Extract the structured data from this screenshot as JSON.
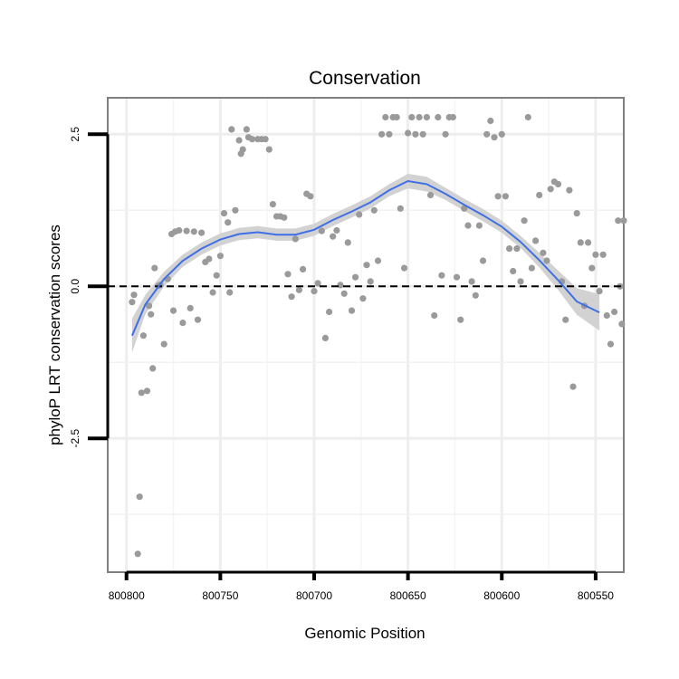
{
  "chart_data": {
    "type": "scatter",
    "title": "Conservation",
    "xlabel": "Genomic Position",
    "ylabel": "phyloP LRT conservation scores",
    "x_reversed": true,
    "xlim": [
      800810,
      800535
    ],
    "ylim": [
      -4.7,
      3.1
    ],
    "x_ticks": [
      800800,
      800750,
      800700,
      800650,
      800600,
      800550
    ],
    "x_tick_labels": [
      "800800",
      "800750",
      "800700",
      "800650",
      "800600",
      "800550"
    ],
    "y_ticks": [
      2.5,
      0.0,
      -2.5
    ],
    "y_tick_labels": [
      "2.5",
      "0.0",
      "-2.5"
    ],
    "reference_line": {
      "y": 0,
      "style": "dashed"
    },
    "grid": true,
    "colors": {
      "points": "#9a9a9a",
      "smooth": "#3f6fe6",
      "band": "#d2d2d2",
      "border": "#7f7f7f",
      "ref_line": "#000000"
    },
    "smooth": {
      "x": [
        800797,
        800790,
        800780,
        800770,
        800760,
        800750,
        800740,
        800730,
        800720,
        800710,
        800700,
        800690,
        800680,
        800670,
        800660,
        800650,
        800640,
        800630,
        800620,
        800610,
        800600,
        800590,
        800580,
        800570,
        800560,
        800548
      ],
      "y": [
        -0.81,
        -0.3,
        0.12,
        0.42,
        0.62,
        0.77,
        0.86,
        0.89,
        0.85,
        0.85,
        0.93,
        1.09,
        1.23,
        1.38,
        1.58,
        1.73,
        1.68,
        1.52,
        1.34,
        1.17,
        0.98,
        0.73,
        0.43,
        0.1,
        -0.25,
        -0.43
      ],
      "band_halfwidth": [
        0.28,
        0.16,
        0.12,
        0.1,
        0.1,
        0.1,
        0.1,
        0.1,
        0.1,
        0.1,
        0.1,
        0.1,
        0.1,
        0.1,
        0.1,
        0.12,
        0.12,
        0.1,
        0.1,
        0.1,
        0.1,
        0.1,
        0.12,
        0.16,
        0.22,
        0.3
      ]
    },
    "points": [
      [
        800797,
        -0.26
      ],
      [
        800796,
        -0.14
      ],
      [
        800794,
        -4.4
      ],
      [
        800793,
        -3.46
      ],
      [
        800792,
        -1.75
      ],
      [
        800791,
        -0.81
      ],
      [
        800789,
        -1.72
      ],
      [
        800788,
        -0.32
      ],
      [
        800787,
        -0.46
      ],
      [
        800786,
        -1.35
      ],
      [
        800785,
        0.3
      ],
      [
        800783,
        0.01
      ],
      [
        800782,
        0.02
      ],
      [
        800780,
        -0.95
      ],
      [
        800778,
        0.12
      ],
      [
        800776,
        0.86
      ],
      [
        800775,
        -0.4
      ],
      [
        800774,
        0.9
      ],
      [
        800772,
        0.92
      ],
      [
        800770,
        -0.6
      ],
      [
        800768,
        0.91
      ],
      [
        800766,
        -0.36
      ],
      [
        800764,
        0.9
      ],
      [
        800762,
        -0.55
      ],
      [
        800760,
        0.88
      ],
      [
        800758,
        0.4
      ],
      [
        800756,
        0.45
      ],
      [
        800754,
        -0.1
      ],
      [
        800752,
        0.18
      ],
      [
        800750,
        0.5
      ],
      [
        800748,
        1.2
      ],
      [
        800746,
        1.05
      ],
      [
        800745,
        -0.1
      ],
      [
        800744,
        2.58
      ],
      [
        800742,
        1.25
      ],
      [
        800740,
        2.4
      ],
      [
        800739,
        2.18
      ],
      [
        800738,
        2.25
      ],
      [
        800736,
        2.58
      ],
      [
        800735,
        2.45
      ],
      [
        800733,
        2.42
      ],
      [
        800730,
        2.42
      ],
      [
        800728,
        2.42
      ],
      [
        800726,
        2.42
      ],
      [
        800724,
        2.25
      ],
      [
        800722,
        1.35
      ],
      [
        800720,
        1.15
      ],
      [
        800718,
        1.15
      ],
      [
        800716,
        1.13
      ],
      [
        800714,
        0.2
      ],
      [
        800712,
        -0.17
      ],
      [
        800710,
        0.78
      ],
      [
        800708,
        -0.06
      ],
      [
        800706,
        0.28
      ],
      [
        800704,
        1.52
      ],
      [
        800702,
        1.48
      ],
      [
        800700,
        -0.08
      ],
      [
        800698,
        0.05
      ],
      [
        800696,
        0.91
      ],
      [
        800694,
        -0.85
      ],
      [
        800692,
        -0.42
      ],
      [
        800690,
        0.82
      ],
      [
        800688,
        0.92
      ],
      [
        800686,
        0.02
      ],
      [
        800684,
        -0.12
      ],
      [
        800682,
        0.72
      ],
      [
        800680,
        -0.4
      ],
      [
        800678,
        0.15
      ],
      [
        800676,
        1.18
      ],
      [
        800674,
        -0.2
      ],
      [
        800672,
        0.35
      ],
      [
        800670,
        0.08
      ],
      [
        800668,
        1.25
      ],
      [
        800666,
        0.42
      ],
      [
        800664,
        2.5
      ],
      [
        800662,
        2.78
      ],
      [
        800660,
        2.5
      ],
      [
        800658,
        2.78
      ],
      [
        800656,
        2.78
      ],
      [
        800654,
        1.28
      ],
      [
        800652,
        0.3
      ],
      [
        800650,
        2.52
      ],
      [
        800648,
        2.78
      ],
      [
        800646,
        2.5
      ],
      [
        800644,
        2.78
      ],
      [
        800642,
        2.5
      ],
      [
        800640,
        2.78
      ],
      [
        800638,
        1.5
      ],
      [
        800636,
        -0.48
      ],
      [
        800634,
        2.78
      ],
      [
        800632,
        0.18
      ],
      [
        800630,
        2.5
      ],
      [
        800628,
        2.78
      ],
      [
        800626,
        2.78
      ],
      [
        800624,
        0.15
      ],
      [
        800622,
        -0.55
      ],
      [
        800620,
        1.28
      ],
      [
        800618,
        1.0
      ],
      [
        800616,
        0.08
      ],
      [
        800614,
        -0.15
      ],
      [
        800612,
        1.0
      ],
      [
        800610,
        0.42
      ],
      [
        800608,
        2.5
      ],
      [
        800606,
        2.72
      ],
      [
        800604,
        2.45
      ],
      [
        800602,
        1.48
      ],
      [
        800600,
        2.5
      ],
      [
        800598,
        1.48
      ],
      [
        800596,
        0.62
      ],
      [
        800594,
        0.25
      ],
      [
        800592,
        0.62
      ],
      [
        800590,
        0.08
      ],
      [
        800588,
        1.08
      ],
      [
        800586,
        2.78
      ],
      [
        800584,
        0.3
      ],
      [
        800582,
        0.75
      ],
      [
        800580,
        1.5
      ],
      [
        800578,
        0.55
      ],
      [
        800576,
        0.42
      ],
      [
        800574,
        1.6
      ],
      [
        800572,
        1.72
      ],
      [
        800570,
        1.68
      ],
      [
        800568,
        0.08
      ],
      [
        800566,
        -0.55
      ],
      [
        800564,
        1.58
      ],
      [
        800562,
        -1.65
      ],
      [
        800560,
        1.2
      ],
      [
        800558,
        0.72
      ],
      [
        800556,
        -0.32
      ],
      [
        800554,
        0.72
      ],
      [
        800552,
        0.3
      ],
      [
        800550,
        0.52
      ],
      [
        800548,
        -0.08
      ],
      [
        800546,
        0.52
      ],
      [
        800544,
        -0.48
      ],
      [
        800542,
        -0.95
      ],
      [
        800540,
        -0.42
      ],
      [
        800538,
        1.08
      ],
      [
        800537,
        0.0
      ],
      [
        800536,
        -0.62
      ],
      [
        800535,
        1.08
      ]
    ]
  }
}
